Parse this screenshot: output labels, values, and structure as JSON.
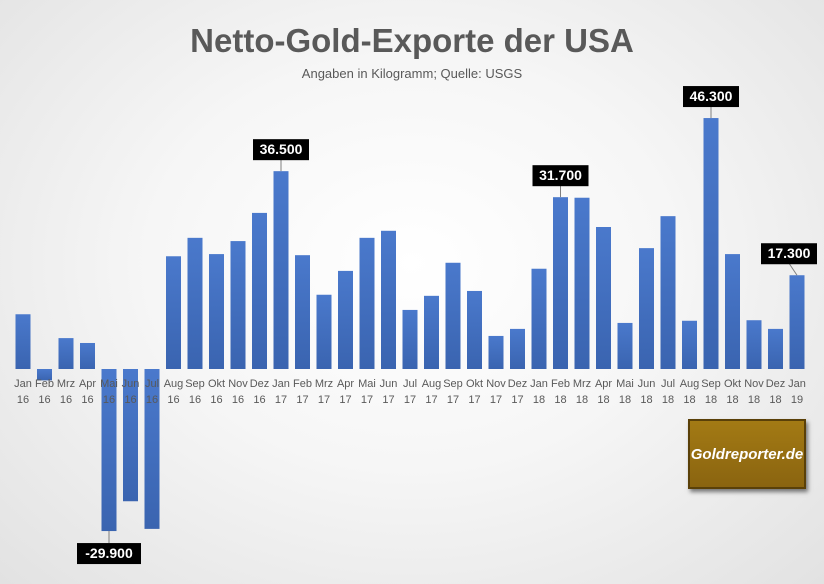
{
  "chart_data": {
    "type": "bar",
    "title": "Netto-Gold-Exporte der USA",
    "subtitle": "Angaben in Kilogramm; Quelle: USGS",
    "xlabel": "",
    "ylabel": "",
    "ylim": [
      -32000,
      48000
    ],
    "grid": false,
    "bar_color": "#4472c4",
    "categories": [
      [
        "Jan",
        "16"
      ],
      [
        "Feb",
        "16"
      ],
      [
        "Mrz",
        "16"
      ],
      [
        "Apr",
        "16"
      ],
      [
        "Mai",
        "16"
      ],
      [
        "Jun",
        "16"
      ],
      [
        "Jul",
        "16"
      ],
      [
        "Aug",
        "16"
      ],
      [
        "Sep",
        "16"
      ],
      [
        "Okt",
        "16"
      ],
      [
        "Nov",
        "16"
      ],
      [
        "Dez",
        "16"
      ],
      [
        "Jan",
        "17"
      ],
      [
        "Feb",
        "17"
      ],
      [
        "Mrz",
        "17"
      ],
      [
        "Apr",
        "17"
      ],
      [
        "Mai",
        "17"
      ],
      [
        "Jun",
        "17"
      ],
      [
        "Jul",
        "17"
      ],
      [
        "Aug",
        "17"
      ],
      [
        "Sep",
        "17"
      ],
      [
        "Okt",
        "17"
      ],
      [
        "Nov",
        "17"
      ],
      [
        "Dez",
        "17"
      ],
      [
        "Jan",
        "18"
      ],
      [
        "Feb",
        "18"
      ],
      [
        "Mrz",
        "18"
      ],
      [
        "Apr",
        "18"
      ],
      [
        "Mai",
        "18"
      ],
      [
        "Jun",
        "18"
      ],
      [
        "Jul",
        "18"
      ],
      [
        "Aug",
        "18"
      ],
      [
        "Sep",
        "18"
      ],
      [
        "Okt",
        "18"
      ],
      [
        "Nov",
        "18"
      ],
      [
        "Dez",
        "18"
      ],
      [
        "Jan",
        "19"
      ]
    ],
    "values": [
      10100,
      -2100,
      5700,
      4800,
      -29900,
      -24400,
      -29500,
      20800,
      24200,
      21200,
      23600,
      28800,
      36500,
      21000,
      13700,
      18100,
      24200,
      25500,
      10900,
      13500,
      19600,
      14400,
      6100,
      7400,
      18500,
      31700,
      31600,
      26200,
      8500,
      22300,
      28200,
      8900,
      46300,
      21200,
      9000,
      7400,
      17300
    ],
    "annotations": [
      {
        "index": 4,
        "label": "-29.900"
      },
      {
        "index": 12,
        "label": "36.500"
      },
      {
        "index": 25,
        "label": "31.700"
      },
      {
        "index": 32,
        "label": "46.300"
      },
      {
        "index": 36,
        "label": "17.300"
      }
    ]
  },
  "logo": {
    "text": "Goldreporter.de"
  }
}
